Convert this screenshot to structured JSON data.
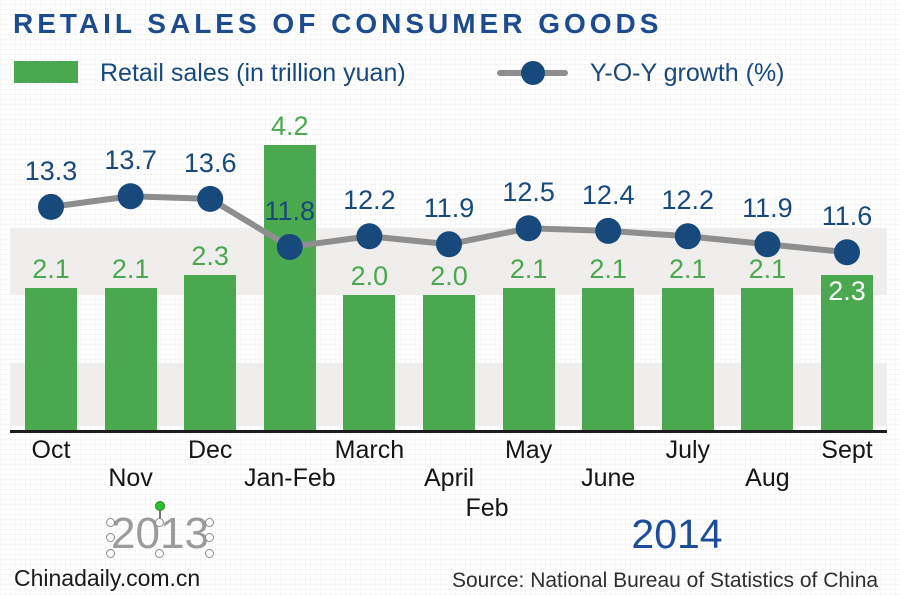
{
  "title": "RETAIL SALES OF CONSUMER GOODS",
  "legend": {
    "bars": "Retail sales (in trillion yuan)",
    "line": "Y-O-Y growth (%)"
  },
  "chart_data": {
    "type": "bar",
    "subtype": "bar-line combo",
    "categories": [
      "Oct",
      "Nov",
      "Dec",
      "Jan-Feb",
      "March",
      "April",
      "May",
      "June",
      "July",
      "Aug",
      "Sept"
    ],
    "category_label_rows": [
      1,
      2,
      1,
      2,
      1,
      2,
      1,
      2,
      1,
      2,
      1
    ],
    "extra_axis_label": "Feb",
    "series": [
      {
        "name": "Retail sales (in trillion yuan)",
        "type": "bar",
        "values": [
          2.1,
          2.1,
          2.3,
          4.2,
          2.0,
          2.0,
          2.1,
          2.1,
          2.1,
          2.1,
          2.3
        ],
        "labels": [
          "2.1",
          "2.1",
          "2.3",
          "4.2",
          "2.0",
          "2.0",
          "2.1",
          "2.1",
          "2.1",
          "2.1",
          "2.3"
        ]
      },
      {
        "name": "Y-O-Y growth (%)",
        "type": "line",
        "values": [
          13.3,
          13.7,
          13.6,
          11.8,
          12.2,
          11.9,
          12.5,
          12.4,
          12.2,
          11.9,
          11.6
        ],
        "labels": [
          "13.3",
          "13.7",
          "13.6",
          "11.8",
          "12.2",
          "11.9",
          "12.5",
          "12.4",
          "12.2",
          "11.9",
          "11.6"
        ]
      }
    ],
    "value_label_inside_bar_index": 10,
    "years": {
      "left": "2013",
      "right": "2014"
    },
    "grid": "off",
    "legend_position": "top",
    "plot_bands": "two light gray horizontal stripes behind series"
  },
  "footer": {
    "brand": "Chinadaily.com.cn",
    "source": "Source: National Bureau of Statistics of China"
  },
  "colors": {
    "bar_green": "#4aa84e",
    "marker_navy": "#17497c",
    "line_gray": "#8e8e8e",
    "title_blue": "#1c4b8e",
    "band_gray": "#efeeed",
    "axis_black": "#1c1c1c",
    "year_2013_gray": "#9b9b9b",
    "year_2014_blue": "#1d4c99",
    "month_black": "#151515",
    "inside_label_white": "#ffffff"
  }
}
